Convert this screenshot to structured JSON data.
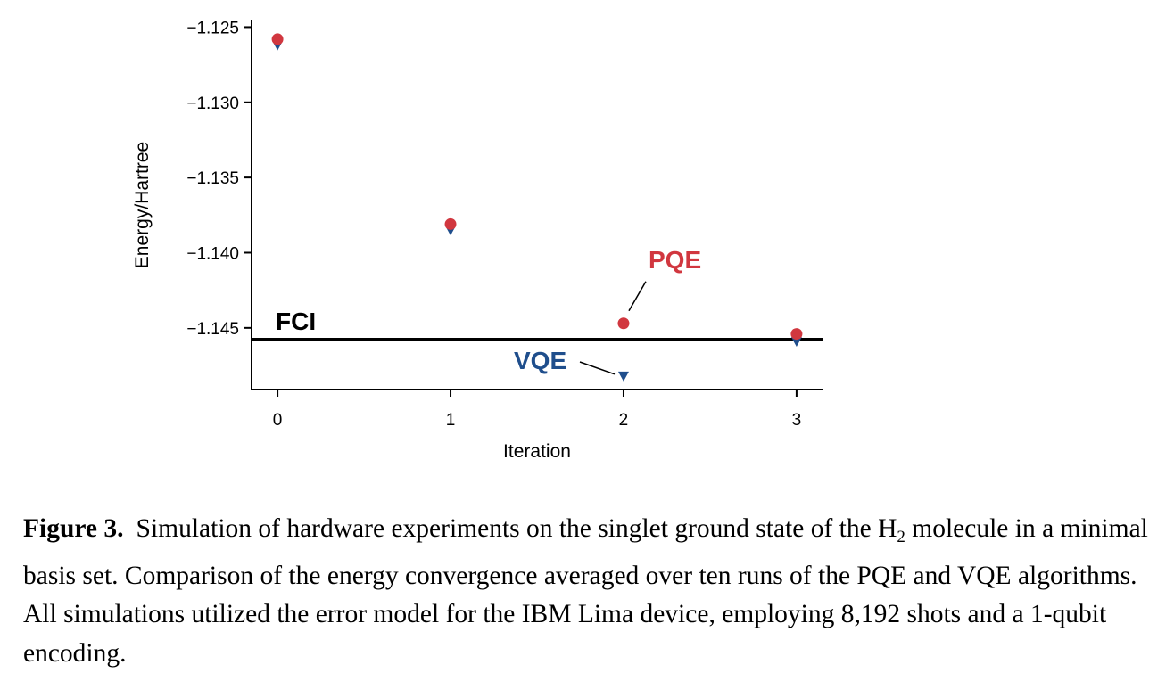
{
  "chart_data": {
    "type": "scatter",
    "xlabel": "Iteration",
    "ylabel": "Energy/Hartree",
    "x_ticks": [
      "0",
      "1",
      "2",
      "3"
    ],
    "y_ticks": [
      "−1.125",
      "−1.130",
      "−1.135",
      "−1.140",
      "−1.145"
    ],
    "y_tick_values": [
      -1.125,
      -1.13,
      -1.135,
      -1.14,
      -1.145
    ],
    "xlim": [
      -0.15,
      3.15
    ],
    "ylim": [
      -1.1491,
      -1.1245
    ],
    "grid": false,
    "series": [
      {
        "name": "PQE",
        "marker": "circle",
        "color": "#d1373f",
        "x": [
          0,
          1,
          2,
          3
        ],
        "y": [
          -1.1258,
          -1.1381,
          -1.1447,
          -1.1454
        ]
      },
      {
        "name": "VQE",
        "marker": "triangle-down",
        "color": "#1f4e8c",
        "x": [
          0,
          1,
          2,
          3
        ],
        "y": [
          -1.1262,
          -1.1385,
          -1.1482,
          -1.1459
        ]
      }
    ],
    "reference_line": {
      "label": "FCI",
      "y": -1.14578,
      "color": "#000000"
    }
  },
  "caption": {
    "label": "Figure 3.",
    "text_before_sub": "Simulation of hardware experiments on the singlet ground state of the H",
    "subscript": "2",
    "text_after_sub": " molecule in a minimal basis set. Comparison of the energy convergence averaged over ten runs of the PQE and VQE algorithms. All simulations utilized the error model for the IBM Lima device, employing 8,192 shots and a 1-qubit encoding."
  }
}
